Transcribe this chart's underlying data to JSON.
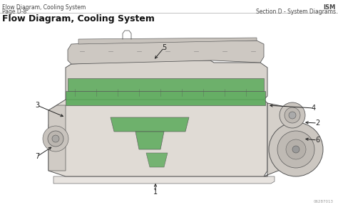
{
  "title_top_left_line1": "Flow Diagram, Cooling System",
  "title_top_left_line2": "Page D-8",
  "title_top_right_line1": "ISM",
  "title_top_right_line2": "Section D - System Diagrams",
  "main_title": "Flow Diagram, Cooling System",
  "bg_color": "#ffffff",
  "engine_line_color": "#555555",
  "green_color": "#5aaa5a",
  "label_color": "#222222",
  "header_text_color": "#444444",
  "watermark": "06287013",
  "figsize": [
    4.74,
    2.91
  ],
  "dpi": 100
}
